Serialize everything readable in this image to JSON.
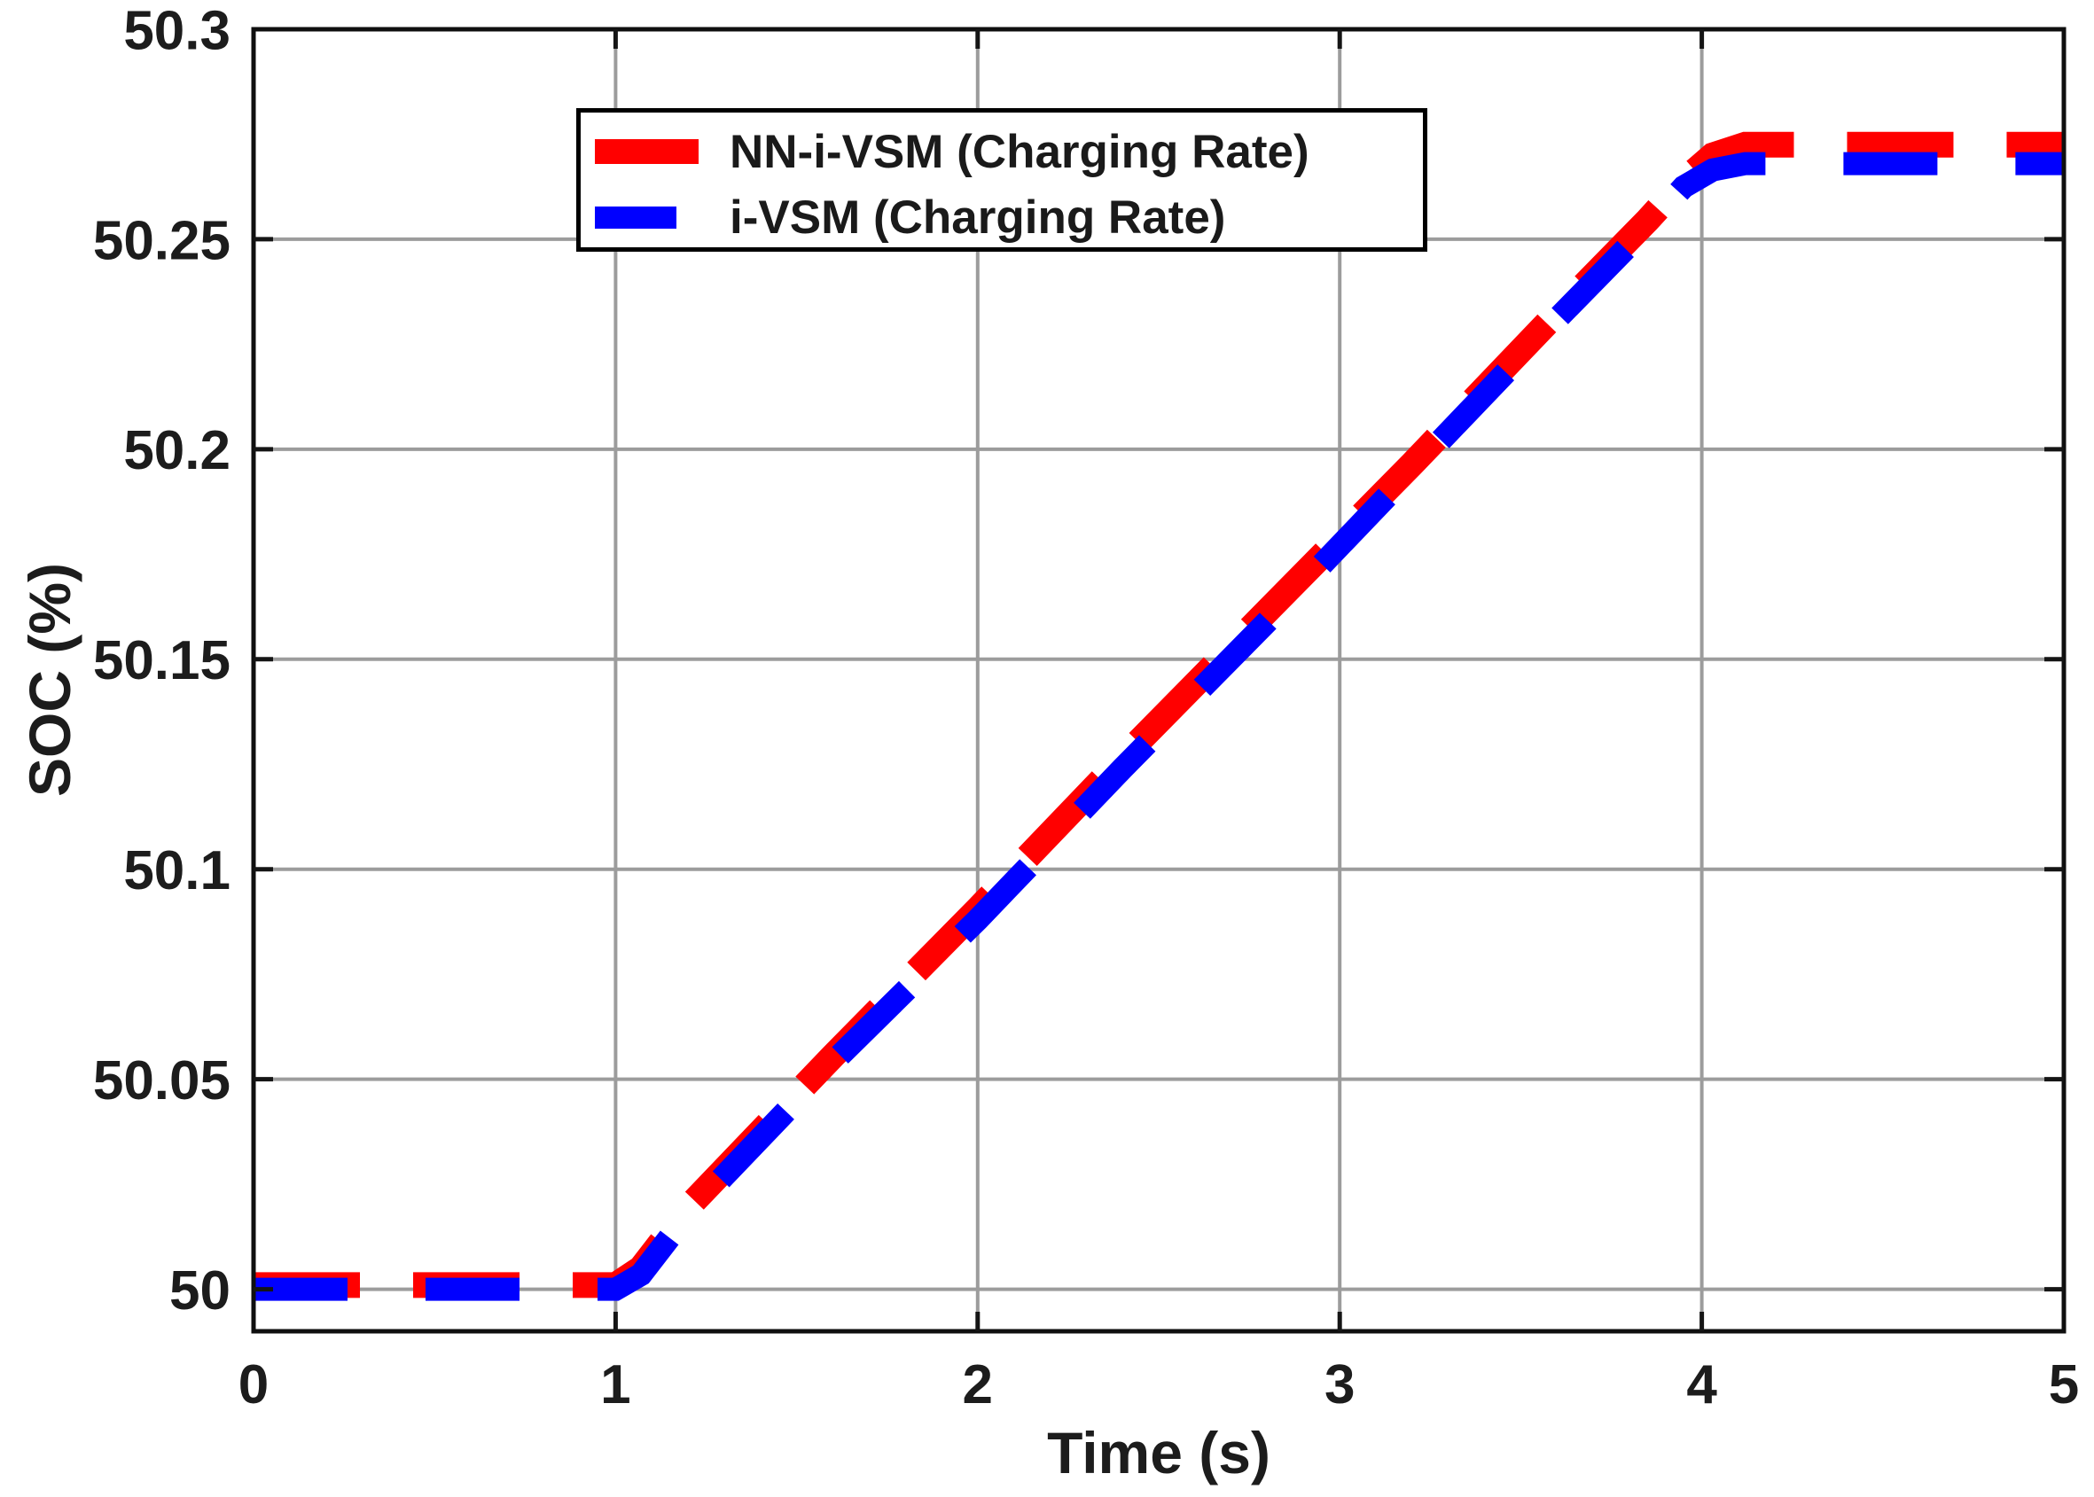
{
  "chart_data": {
    "type": "line",
    "title": "",
    "xlabel": "Time (s)",
    "ylabel": "SOC (%)",
    "xlim": [
      0,
      5
    ],
    "ylim": [
      49.99,
      50.3
    ],
    "xticks": [
      0,
      1,
      2,
      3,
      4,
      5
    ],
    "xtick_labels": [
      "0",
      "1",
      "2",
      "3",
      "4",
      "5"
    ],
    "yticks": [
      50,
      50.05,
      50.1,
      50.15,
      50.2,
      50.25,
      50.3
    ],
    "ytick_labels": [
      "50",
      "50.05",
      "50.1",
      "50.15",
      "50.2",
      "50.25",
      "50.3"
    ],
    "grid": true,
    "legend_position": "upper left inside",
    "series": [
      {
        "name": "NN-i-VSM (Charging Rate)",
        "color": "#ff0000",
        "linestyle": "dashed",
        "x": [
          0,
          1.0,
          1.07,
          1.2,
          1.6,
          2.0,
          2.4,
          2.8,
          3.2,
          3.6,
          3.85,
          3.95,
          4.03,
          4.12,
          5.0
        ],
        "y": [
          50.001,
          50.001,
          50.005,
          50.0195,
          50.0555,
          50.0905,
          50.1265,
          50.1615,
          50.1965,
          50.2325,
          50.2545,
          50.264,
          50.27,
          50.2725,
          50.2725
        ]
      },
      {
        "name": "i-VSM (Charging Rate)",
        "color": "#0000ff",
        "linestyle": "dashed",
        "x": [
          0,
          1.0,
          1.07,
          1.2,
          1.6,
          2.0,
          2.4,
          2.8,
          3.2,
          3.6,
          3.85,
          3.95,
          4.03,
          4.12,
          5.0
        ],
        "y": [
          50.0,
          50.0,
          50.0035,
          50.018,
          50.054,
          50.088,
          50.124,
          50.159,
          50.195,
          50.231,
          50.253,
          50.2625,
          50.2665,
          50.268,
          50.268
        ]
      }
    ]
  },
  "colors": {
    "background": "#ffffff",
    "grid": "#9c9c9c",
    "axis_border": "#0f0f0f",
    "tick": "#151515",
    "text": "#1c1c1c",
    "series_red": "#ff0000",
    "series_blue": "#0000ff"
  }
}
